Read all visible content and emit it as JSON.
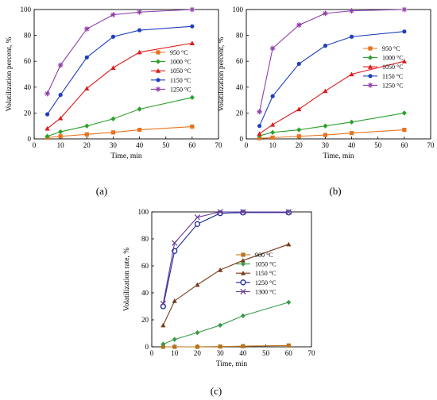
{
  "chart_data": [
    {
      "type": "line",
      "panel_label": "(a)",
      "title": "",
      "xlabel": "Time, min",
      "ylabel": "Volatilization percent, %",
      "xlim": [
        0,
        70
      ],
      "ylim": [
        0,
        100
      ],
      "xticks": [
        0,
        10,
        20,
        30,
        40,
        50,
        60,
        70
      ],
      "yticks": [
        0,
        20,
        40,
        60,
        80,
        100
      ],
      "grid": false,
      "legend_position": "right-middle",
      "x": [
        5,
        10,
        20,
        30,
        40,
        60
      ],
      "series": [
        {
          "name": "950 °C",
          "color": "#e8731e",
          "marker": "square",
          "values": [
            1,
            2,
            3.5,
            5,
            7,
            9.5
          ]
        },
        {
          "name": "1000 °C",
          "color": "#2ca02c",
          "marker": "diamond",
          "values": [
            2,
            5.5,
            10,
            15.5,
            23,
            32
          ]
        },
        {
          "name": "1050 °C",
          "color": "#e01a1a",
          "marker": "triangle",
          "values": [
            8,
            16,
            39,
            55,
            67,
            74
          ]
        },
        {
          "name": "1150 °C",
          "color": "#1f3fbf",
          "marker": "circle",
          "values": [
            19,
            34,
            63,
            79,
            84,
            87
          ]
        },
        {
          "name": "1250 °C",
          "color": "#8e3fa8",
          "marker": "star",
          "values": [
            35,
            57,
            85,
            96,
            98,
            100
          ]
        }
      ]
    },
    {
      "type": "line",
      "panel_label": "(b)",
      "title": "",
      "xlabel": "Time, min",
      "ylabel": "Volatilization percent, %",
      "xlim": [
        0,
        70
      ],
      "ylim": [
        0,
        100
      ],
      "xticks": [
        0,
        10,
        20,
        30,
        40,
        50,
        60,
        70
      ],
      "yticks": [
        0,
        20,
        40,
        60,
        80,
        100
      ],
      "grid": false,
      "legend_position": "right-middle",
      "x": [
        5,
        10,
        20,
        30,
        40,
        60
      ],
      "series": [
        {
          "name": "950 °C",
          "color": "#e8731e",
          "marker": "square",
          "values": [
            0.5,
            1,
            2,
            3,
            4.5,
            7
          ]
        },
        {
          "name": "1000 °C",
          "color": "#2ca02c",
          "marker": "diamond",
          "values": [
            2.5,
            5,
            7,
            10,
            13,
            20
          ]
        },
        {
          "name": "1050 °C",
          "color": "#e01a1a",
          "marker": "triangle",
          "values": [
            4,
            11,
            23,
            37,
            50,
            60
          ]
        },
        {
          "name": "1150 °C",
          "color": "#1f3fbf",
          "marker": "circle",
          "values": [
            10,
            33,
            58,
            72,
            79,
            83
          ]
        },
        {
          "name": "1250 °C",
          "color": "#8e3fa8",
          "marker": "star",
          "values": [
            21,
            70,
            88,
            97,
            99,
            100
          ]
        }
      ]
    },
    {
      "type": "line",
      "panel_label": "(c)",
      "title": "",
      "xlabel": "Time, min",
      "ylabel": "Volatilization rate, %",
      "xlim": [
        0,
        70
      ],
      "ylim": [
        0,
        100
      ],
      "xticks": [
        0,
        10,
        20,
        30,
        40,
        50,
        60,
        70
      ],
      "yticks": [
        0,
        20,
        40,
        60,
        80,
        100
      ],
      "grid": false,
      "legend_position": "right-middle",
      "x": [
        5,
        10,
        20,
        30,
        40,
        60
      ],
      "series": [
        {
          "name": "900 °C",
          "color": "#b8731a",
          "marker": "square",
          "values": [
            0,
            0,
            0,
            0.2,
            0.5,
            1
          ]
        },
        {
          "name": "1050 °C",
          "color": "#3a9a4a",
          "marker": "diamond",
          "values": [
            2,
            5.5,
            10.5,
            16,
            23,
            33
          ]
        },
        {
          "name": "1150 °C",
          "color": "#7a3a1a",
          "marker": "triangle",
          "values": [
            16,
            34,
            46,
            57,
            64,
            76
          ]
        },
        {
          "name": "1250 °C",
          "color": "#1a2a9a",
          "marker": "circle-open",
          "values": [
            30,
            71,
            91,
            99,
            99.5,
            99.5
          ]
        },
        {
          "name": "1300 °C",
          "color": "#6a3a9a",
          "marker": "x-cross",
          "values": [
            32,
            77,
            96,
            100,
            100,
            100
          ]
        }
      ]
    }
  ]
}
